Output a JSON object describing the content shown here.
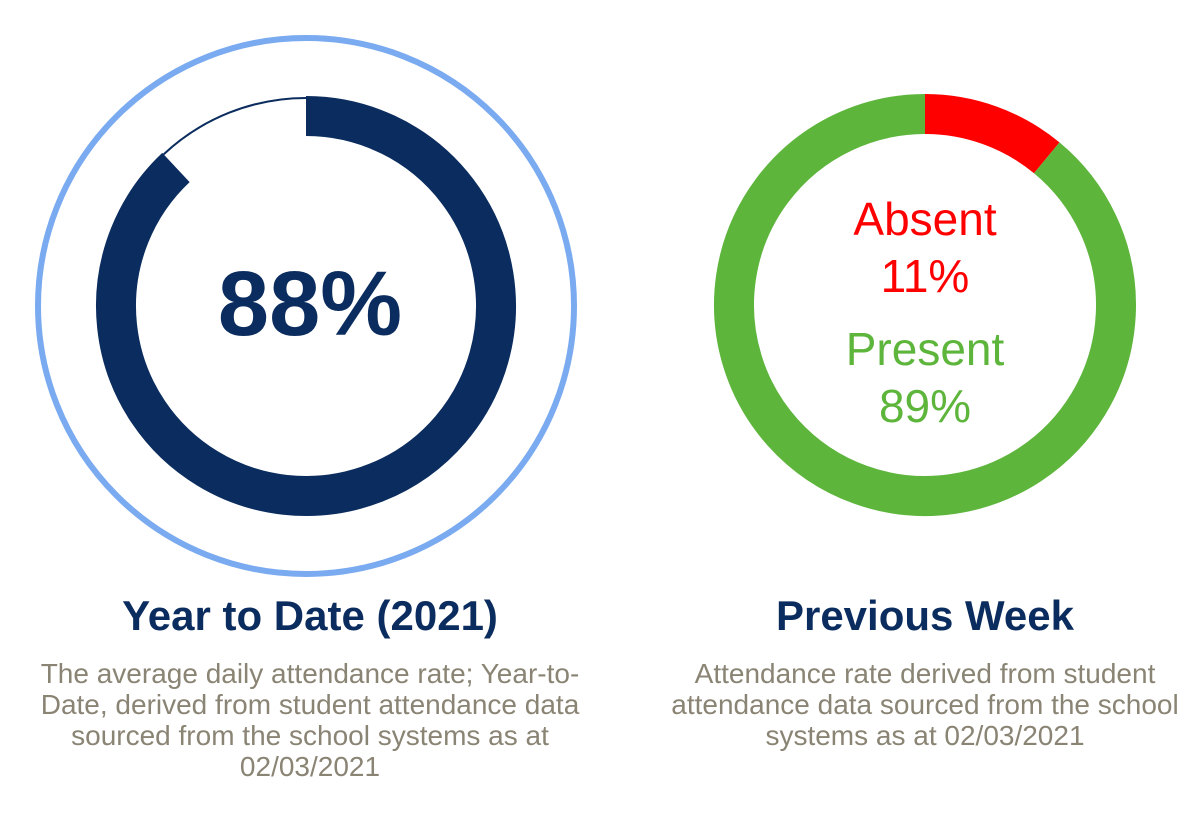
{
  "chart_data": [
    {
      "type": "pie",
      "variant": "progress-ring",
      "center_label": "88%",
      "value": 88,
      "max": 100,
      "title": "Year to Date (2021)",
      "description": "The average daily attendance rate; Year-to-Date, derived from student attendance data sourced from the school systems as at 02/03/2021",
      "colors": {
        "filled": "#0b2c5e",
        "remainder": "#0b2c5e",
        "outline": "#7aaaf0"
      }
    },
    {
      "type": "pie",
      "variant": "donut",
      "title": "Previous Week",
      "description": "Attendance rate derived from student attendance data sourced from the school systems as at 02/03/2021",
      "slices": [
        {
          "label": "Absent",
          "value": 11,
          "display": "11%",
          "color": "#ff0000"
        },
        {
          "label": "Present",
          "value": 89,
          "display": "89%",
          "color": "#5db53b"
        }
      ]
    }
  ]
}
